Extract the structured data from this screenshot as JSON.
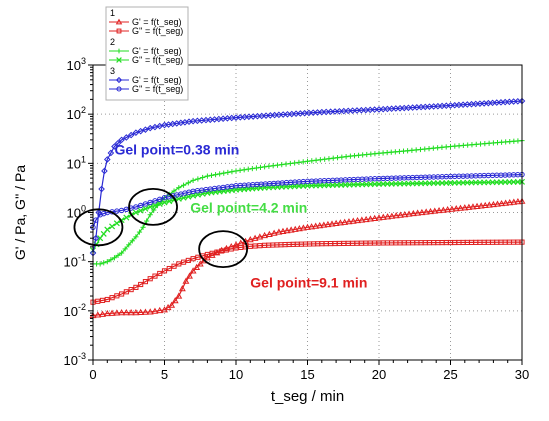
{
  "chart_data": {
    "type": "scatter",
    "xlabel": "t_seg / min",
    "ylabel": "G' / Pa, G'' / Pa",
    "xlim": [
      0,
      30
    ],
    "ylim_log10": [
      -3,
      3
    ],
    "yscale": "log",
    "grid": "dotted",
    "legend_position": "top-left",
    "x_ticks": [
      "0",
      "5",
      "10",
      "15",
      "20",
      "25",
      "30"
    ],
    "y_ticks": [
      {
        "base": "10",
        "exp": "3",
        "value": 1000
      },
      {
        "base": "10",
        "exp": "2",
        "value": 100
      },
      {
        "base": "10",
        "exp": "1",
        "value": 10
      },
      {
        "base": "10",
        "exp": "0",
        "value": 1
      },
      {
        "base": "10",
        "exp": "-1",
        "value": 0.1
      },
      {
        "base": "10",
        "exp": "-2",
        "value": 0.01
      },
      {
        "base": "10",
        "exp": "-3",
        "value": 0.001
      }
    ],
    "legend_groups": [
      {
        "label": "1",
        "color": "#e02020",
        "entries": [
          "G' = f(t_seg)",
          "G'' = f(t_seg)"
        ]
      },
      {
        "label": "2",
        "color": "#22dd22",
        "entries": [
          "G' = f(t_seg)",
          "G'' = f(t_seg)"
        ]
      },
      {
        "label": "3",
        "color": "#2a2ad4",
        "entries": [
          "G' = f(t_seg)",
          "G'' = f(t_seg)"
        ]
      }
    ],
    "series": [
      {
        "group": "1",
        "modulus": "G'",
        "marker": "triangle",
        "color": "#e02020",
        "points": [
          [
            0,
            0.008
          ],
          [
            1,
            0.0088
          ],
          [
            2,
            0.0092
          ],
          [
            3,
            0.0092
          ],
          [
            4,
            0.0095
          ],
          [
            5,
            0.0105
          ],
          [
            5.5,
            0.013
          ],
          [
            6,
            0.02
          ],
          [
            6.5,
            0.04
          ],
          [
            7,
            0.065
          ],
          [
            7.5,
            0.09
          ],
          [
            8,
            0.12
          ],
          [
            9,
            0.17
          ],
          [
            10,
            0.22
          ],
          [
            11,
            0.28
          ],
          [
            12,
            0.34
          ],
          [
            13,
            0.4
          ],
          [
            15,
            0.5
          ],
          [
            17,
            0.6
          ],
          [
            20,
            0.78
          ],
          [
            23,
            1.0
          ],
          [
            26,
            1.25
          ],
          [
            28,
            1.45
          ],
          [
            30,
            1.7
          ]
        ]
      },
      {
        "group": "1",
        "modulus": "G''",
        "marker": "square",
        "color": "#e02020",
        "points": [
          [
            0,
            0.015
          ],
          [
            1,
            0.017
          ],
          [
            2,
            0.022
          ],
          [
            3,
            0.03
          ],
          [
            4,
            0.045
          ],
          [
            5,
            0.065
          ],
          [
            6,
            0.09
          ],
          [
            7,
            0.115
          ],
          [
            8,
            0.14
          ],
          [
            9,
            0.165
          ],
          [
            10,
            0.19
          ],
          [
            11,
            0.205
          ],
          [
            12,
            0.215
          ],
          [
            14,
            0.225
          ],
          [
            16,
            0.232
          ],
          [
            20,
            0.24
          ],
          [
            25,
            0.245
          ],
          [
            30,
            0.25
          ]
        ]
      },
      {
        "group": "2",
        "modulus": "G'",
        "marker": "plus",
        "color": "#22dd22",
        "points": [
          [
            0,
            0.09
          ],
          [
            0.5,
            0.09
          ],
          [
            1,
            0.1
          ],
          [
            1.5,
            0.12
          ],
          [
            2,
            0.15
          ],
          [
            2.5,
            0.22
          ],
          [
            3,
            0.32
          ],
          [
            3.5,
            0.5
          ],
          [
            4,
            0.9
          ],
          [
            4.5,
            1.4
          ],
          [
            5,
            2.0
          ],
          [
            6,
            3.2
          ],
          [
            7,
            4.5
          ],
          [
            8,
            5.5
          ],
          [
            10,
            7.0
          ],
          [
            12,
            8.5
          ],
          [
            15,
            11
          ],
          [
            18,
            14
          ],
          [
            20,
            16
          ],
          [
            22,
            18
          ],
          [
            25,
            22
          ],
          [
            28,
            26
          ],
          [
            30,
            29
          ]
        ]
      },
      {
        "group": "2",
        "modulus": "G''",
        "marker": "x",
        "color": "#22dd22",
        "points": [
          [
            0,
            0.17
          ],
          [
            0.5,
            0.3
          ],
          [
            1,
            0.45
          ],
          [
            2,
            0.7
          ],
          [
            3,
            1.0
          ],
          [
            4,
            1.3
          ],
          [
            5,
            1.6
          ],
          [
            6,
            1.9
          ],
          [
            7,
            2.2
          ],
          [
            8,
            2.5
          ],
          [
            10,
            2.9
          ],
          [
            12,
            3.2
          ],
          [
            15,
            3.5
          ],
          [
            20,
            3.8
          ],
          [
            25,
            4.0
          ],
          [
            30,
            4.2
          ]
        ]
      },
      {
        "group": "3",
        "modulus": "G'",
        "marker": "diamond",
        "color": "#2a2ad4",
        "points": [
          [
            0,
            0.15
          ],
          [
            0.2,
            0.3
          ],
          [
            0.4,
            1.0
          ],
          [
            0.6,
            3.0
          ],
          [
            0.8,
            7.0
          ],
          [
            1,
            12
          ],
          [
            1.5,
            22
          ],
          [
            2,
            30
          ],
          [
            3,
            42
          ],
          [
            4,
            52
          ],
          [
            5,
            60
          ],
          [
            7,
            72
          ],
          [
            10,
            85
          ],
          [
            13,
            97
          ],
          [
            16,
            110
          ],
          [
            20,
            125
          ],
          [
            25,
            150
          ],
          [
            30,
            185
          ]
        ]
      },
      {
        "group": "3",
        "modulus": "G''",
        "marker": "circle",
        "color": "#2a2ad4",
        "points": [
          [
            0,
            0.5
          ],
          [
            0.2,
            0.7
          ],
          [
            0.5,
            0.9
          ],
          [
            1,
            1.0
          ],
          [
            2,
            1.1
          ],
          [
            3,
            1.3
          ],
          [
            4,
            1.6
          ],
          [
            5,
            2.0
          ],
          [
            7,
            2.7
          ],
          [
            10,
            3.5
          ],
          [
            15,
            4.3
          ],
          [
            20,
            4.9
          ],
          [
            25,
            5.4
          ],
          [
            30,
            5.9
          ]
        ]
      }
    ],
    "annotations": [
      {
        "text": "Gel point=0.38 min",
        "color": "#2a2ad4",
        "x": 1.5,
        "y": 15,
        "circle_center": [
          0.38,
          0.5
        ]
      },
      {
        "text": "Gel point=4.2 min",
        "color": "#44dd44",
        "x": 6.8,
        "y": 1.0,
        "circle_center": [
          4.2,
          1.3
        ]
      },
      {
        "text": "Gel point=9.1 min",
        "color": "#e02020",
        "x": 11,
        "y": 0.03,
        "circle_center": [
          9.1,
          0.18
        ]
      }
    ]
  }
}
